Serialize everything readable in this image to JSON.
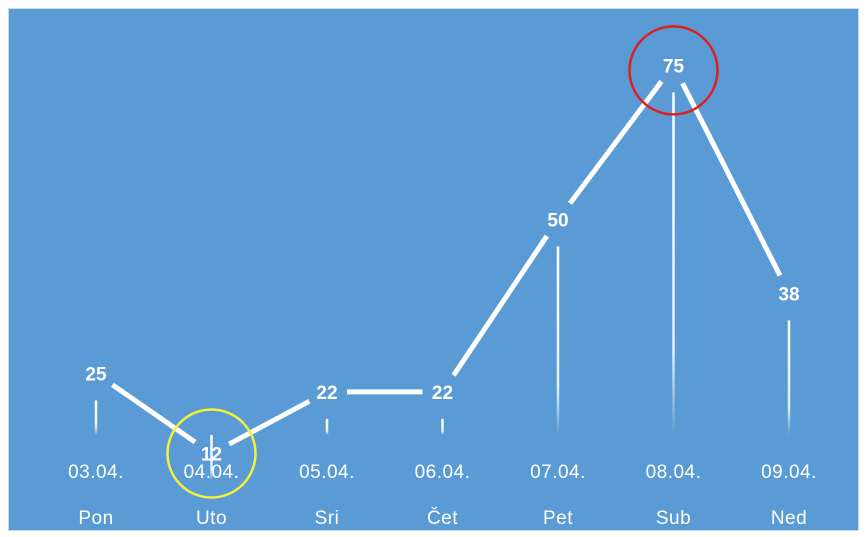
{
  "chart_data": {
    "type": "line",
    "title": "",
    "xlabel": "",
    "ylabel": "",
    "categories": [
      "03.04.",
      "04.04.",
      "05.04.",
      "06.04.",
      "07.04.",
      "08.04.",
      "09.04."
    ],
    "days": [
      "Pon",
      "Uto",
      "Sri",
      "Čet",
      "Pet",
      "Sub",
      "Ned"
    ],
    "values": [
      25,
      12,
      22,
      22,
      50,
      75,
      38
    ],
    "grid": false,
    "legend": "none",
    "colors": {
      "background": "#5b9bd5",
      "line": "#ffffff",
      "max_highlight": "#e0201f",
      "min_highlight": "#f2f23a"
    },
    "highlights": [
      {
        "category": "08.04.",
        "kind": "max",
        "shape": "circle-outline"
      },
      {
        "category": "04.04.",
        "kind": "min",
        "shape": "circle-outline"
      }
    ]
  }
}
